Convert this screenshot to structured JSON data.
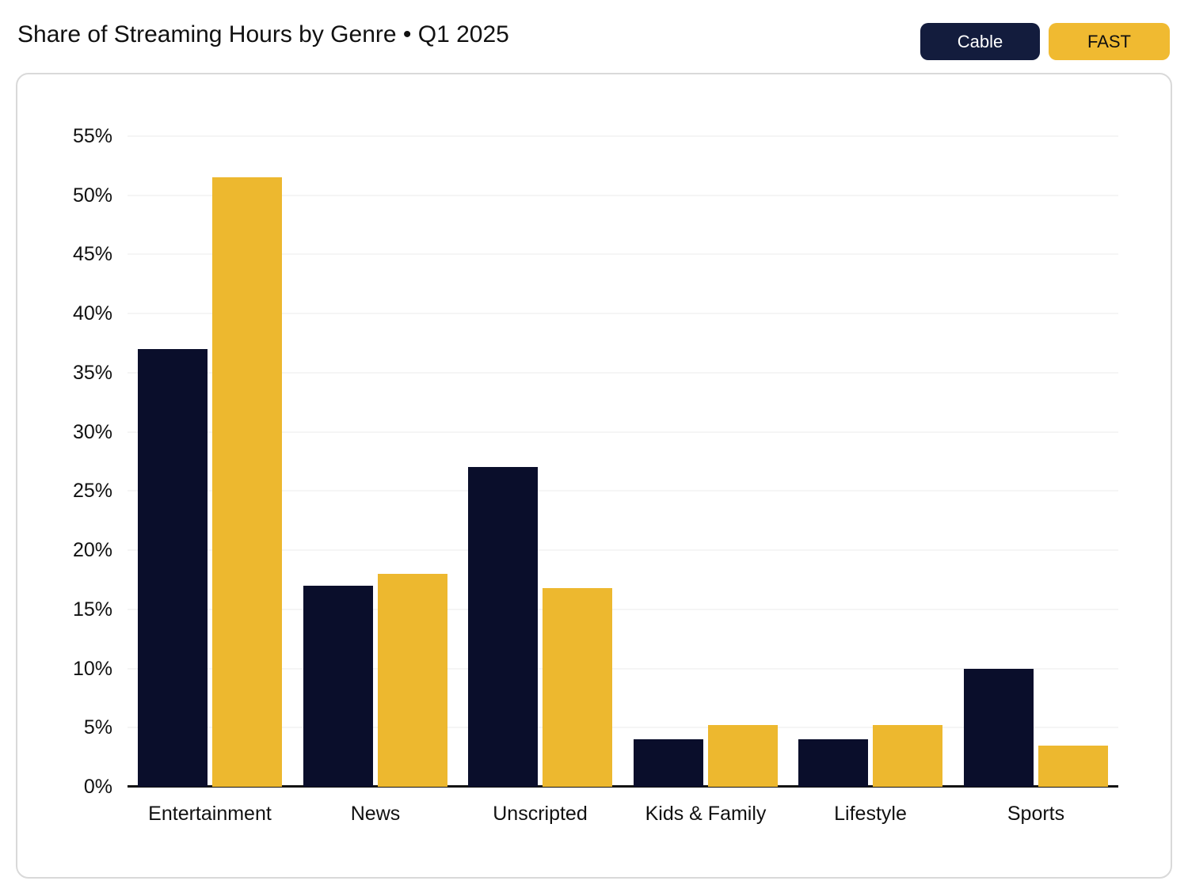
{
  "header": {
    "title": "Share of Streaming Hours by Genre • Q1 2025"
  },
  "legend": {
    "buttons": [
      {
        "label": "Cable",
        "color": "#131c3d",
        "text_color": "#ffffff"
      },
      {
        "label": "FAST",
        "color": "#f0ba31",
        "text_color": "#101010"
      }
    ]
  },
  "colors": {
    "cable_bar": "#0a0e2b",
    "fast_bar": "#edb82f",
    "panel_border": "#d9d9d9",
    "gridline": "#f5f5f5",
    "axis_line": "#131313"
  },
  "chart_data": {
    "type": "bar",
    "title": "Share of Streaming Hours by Genre • Q1 2025",
    "categories": [
      "Entertainment",
      "News",
      "Unscripted",
      "Kids & Family",
      "Lifestyle",
      "Sports"
    ],
    "series": [
      {
        "name": "Cable",
        "color": "#0a0e2b",
        "values": [
          37,
          17,
          27,
          4,
          4,
          10
        ]
      },
      {
        "name": "FAST",
        "color": "#edb82f",
        "values": [
          51.5,
          18,
          16.8,
          5.2,
          5.2,
          3.5
        ]
      }
    ],
    "xlabel": "",
    "ylabel": "",
    "ylim": [
      0,
      55
    ],
    "ytick_step": 5,
    "ytick_labels": [
      "0%",
      "5%",
      "10%",
      "15%",
      "20%",
      "25%",
      "30%",
      "35%",
      "40%",
      "45%",
      "50%",
      "55%"
    ],
    "grid": true,
    "legend_position": "top-right"
  }
}
